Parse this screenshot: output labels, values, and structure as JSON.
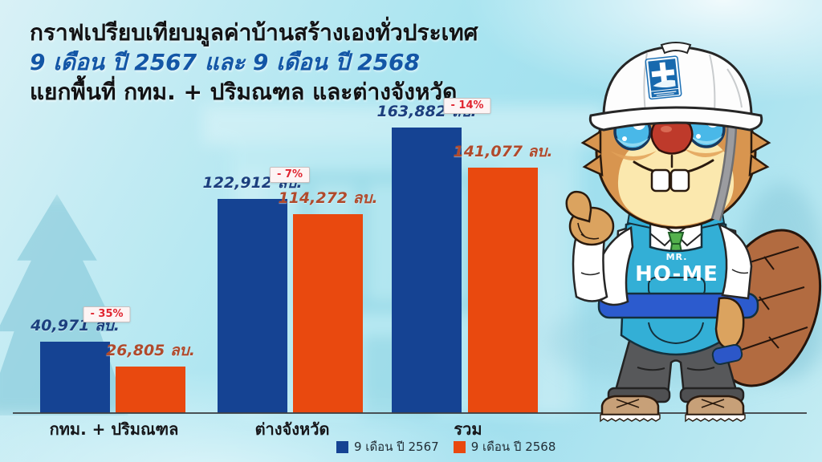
{
  "title": {
    "line1": "กราฟเปรียบเทียบมูลค่าบ้านสร้างเองทั่วประเทศ",
    "line2": "9 เดือน ปี 2567 และ 9 เดือน ปี 2568",
    "line3": "แยกพื้นที่ กทม. + ปริมณฑล และต่างจังหวัด"
  },
  "chart_data": {
    "type": "bar",
    "title": "กราฟเปรียบเทียบมูลค่าบ้านสร้างเองทั่วประเทศ 9 เดือน ปี 2567 และ 9 เดือน ปี 2568 แยกพื้นที่ กทม. + ปริมณฑล และต่างจังหวัด",
    "categories": [
      "กทม. + ปริมณฑล",
      "ต่างจังหวัด",
      "รวม"
    ],
    "series": [
      {
        "name": "9 เดือน ปี 2567",
        "color": "#154393",
        "values": [
          40971,
          122912,
          163882
        ],
        "labels": [
          "40,971 ลบ.",
          "122,912 ลบ.",
          "163,882 ลบ."
        ]
      },
      {
        "name": "9 เดือน ปี 2568",
        "color": "#E9490F",
        "values": [
          26805,
          114272,
          141077
        ],
        "labels": [
          "26,805 ลบ.",
          "114,272 ลบ.",
          "141,077 ลบ."
        ]
      }
    ],
    "change_badges": [
      "- 35%",
      "- 7%",
      "- 14%"
    ],
    "unit": "ลบ.",
    "ylim": [
      0,
      170000
    ],
    "grid": false,
    "legend_position": "bottom-center"
  },
  "legend": {
    "items": [
      {
        "label": "9 เดือน ปี 2567",
        "color": "#154393"
      },
      {
        "label": "9 เดือน ปี 2568",
        "color": "#E9490F"
      }
    ]
  },
  "mascot": {
    "apron_label_small": "MR.",
    "apron_label_large": "HO-ME"
  },
  "colors": {
    "background_cyan": "#A8E4F0",
    "bar_2567": "#154393",
    "bar_2568": "#E9490F",
    "value_label_2567": "#1C3F7E",
    "value_label_2568": "#B04A2C",
    "badge_text": "#E02530",
    "title_accent": "#1356A6",
    "text_dark": "#121214",
    "apron_blue": "#33AFD6",
    "belt_blue": "#2C5BCE"
  }
}
